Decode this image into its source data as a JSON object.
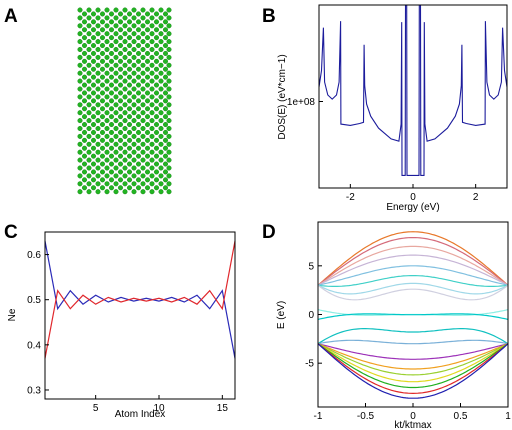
{
  "panels": {
    "A": {
      "letter": "A",
      "lattice_color": "#22b422"
    },
    "B": {
      "letter": "B"
    },
    "C": {
      "letter": "C"
    },
    "D": {
      "letter": "D"
    }
  },
  "chart_data": [
    {
      "panel": "B",
      "type": "line",
      "title": "",
      "xlabel": "Energy (eV)",
      "ylabel": "DOS(E) (eV*cm−1)",
      "xlim": [
        -3,
        3
      ],
      "log_y": true,
      "ylim": [
        3000000,
        5000000000
      ],
      "xticks": [
        {
          "v": -2,
          "label": "-2"
        },
        {
          "v": 0,
          "label": "0"
        },
        {
          "v": 2,
          "label": "2"
        }
      ],
      "yticks": [
        {
          "v": 100000000,
          "label": "1e+08"
        }
      ],
      "series": [
        {
          "color": "#1c1c9c",
          "points": [
            [
              -3.0,
              180000000.0
            ],
            [
              -2.92,
              350000000.0
            ],
            [
              -2.86,
              2000000000.0
            ],
            [
              -2.82,
              220000000.0
            ],
            [
              -2.72,
              130000000.0
            ],
            [
              -2.58,
              110000000.0
            ],
            [
              -2.44,
              130000000.0
            ],
            [
              -2.36,
              220000000.0
            ],
            [
              -2.31,
              2600000000.0
            ],
            [
              -2.3,
              40000000.0
            ],
            [
              -2.0,
              38000000.0
            ],
            [
              -1.7,
              41000000.0
            ],
            [
              -1.58,
              43000000.0
            ],
            [
              -1.56,
              1000000000.0
            ],
            [
              -1.54,
              190000000.0
            ],
            [
              -1.48,
              90000000.0
            ],
            [
              -1.35,
              55000000.0
            ],
            [
              -1.1,
              34000000.0
            ],
            [
              -0.7,
              22000000.0
            ],
            [
              -0.45,
              20000000.0
            ],
            [
              -0.38,
              40000000.0
            ],
            [
              -0.36,
              2500000000.0
            ],
            [
              -0.35,
              5000000.0
            ],
            [
              -0.25,
              5000000.0
            ],
            [
              -0.24,
              5000000000.0
            ],
            [
              -0.2,
              5000000000.0
            ],
            [
              -0.19,
              5000000.0
            ],
            [
              0.19,
              5000000.0
            ],
            [
              0.2,
              5000000000.0
            ],
            [
              0.24,
              5000000000.0
            ],
            [
              0.25,
              5000000.0
            ],
            [
              0.35,
              5000000.0
            ],
            [
              0.36,
              2500000000.0
            ],
            [
              0.38,
              40000000.0
            ],
            [
              0.45,
              20000000.0
            ],
            [
              0.7,
              22000000.0
            ],
            [
              1.1,
              34000000.0
            ],
            [
              1.35,
              55000000.0
            ],
            [
              1.48,
              90000000.0
            ],
            [
              1.54,
              190000000.0
            ],
            [
              1.56,
              1000000000.0
            ],
            [
              1.58,
              43000000.0
            ],
            [
              1.7,
              41000000.0
            ],
            [
              2.0,
              38000000.0
            ],
            [
              2.3,
              40000000.0
            ],
            [
              2.31,
              2600000000.0
            ],
            [
              2.36,
              220000000.0
            ],
            [
              2.44,
              130000000.0
            ],
            [
              2.58,
              110000000.0
            ],
            [
              2.72,
              130000000.0
            ],
            [
              2.82,
              220000000.0
            ],
            [
              2.86,
              2000000000.0
            ],
            [
              2.92,
              350000000.0
            ],
            [
              3.0,
              180000000.0
            ]
          ]
        }
      ]
    },
    {
      "panel": "C",
      "type": "line",
      "title": "",
      "xlabel": "Atom Index",
      "ylabel": "Ne",
      "xlim": [
        1,
        16
      ],
      "ylim": [
        0.28,
        0.65
      ],
      "xticks": [
        {
          "v": 5,
          "label": "5"
        },
        {
          "v": 10,
          "label": "10"
        },
        {
          "v": 15,
          "label": "15"
        }
      ],
      "yticks": [
        {
          "v": 0.3,
          "label": "0.3"
        },
        {
          "v": 0.4,
          "label": "0.4"
        },
        {
          "v": 0.5,
          "label": "0.5"
        },
        {
          "v": 0.6,
          "label": "0.6"
        }
      ],
      "x": [
        1,
        2,
        3,
        4,
        5,
        6,
        7,
        8,
        9,
        10,
        11,
        12,
        13,
        14,
        15,
        16
      ],
      "series": [
        {
          "color": "#2b2bb8",
          "values": [
            0.63,
            0.48,
            0.52,
            0.49,
            0.51,
            0.495,
            0.505,
            0.497,
            0.503,
            0.497,
            0.505,
            0.495,
            0.51,
            0.48,
            0.52,
            0.37
          ]
        },
        {
          "color": "#e0282d",
          "values": [
            0.37,
            0.52,
            0.48,
            0.51,
            0.49,
            0.505,
            0.495,
            0.503,
            0.497,
            0.503,
            0.495,
            0.505,
            0.49,
            0.52,
            0.48,
            0.63
          ]
        }
      ]
    },
    {
      "panel": "D",
      "type": "line",
      "title": "",
      "xlabel": "kt/ktmax",
      "ylabel": "E (eV)",
      "xlim": [
        -1,
        1
      ],
      "ylim": [
        -9.5,
        9.5
      ],
      "xticks": [
        {
          "v": -1,
          "label": "-1"
        },
        {
          "v": -0.5,
          "label": "-0.5"
        },
        {
          "v": 0,
          "label": "0"
        },
        {
          "v": 0.5,
          "label": "0.5"
        },
        {
          "v": 1,
          "label": "1"
        }
      ],
      "yticks": [
        {
          "v": -5,
          "label": "-5"
        },
        {
          "v": 0,
          "label": "0"
        },
        {
          "v": 5,
          "label": "5"
        }
      ],
      "bands": [
        {
          "color": "#e8782a",
          "edge": 3.0,
          "center": 8.5,
          "dip": 0
        },
        {
          "color": "#d46a7a",
          "edge": 3.0,
          "center": 7.9,
          "dip": 0
        },
        {
          "color": "#e8a8a0",
          "edge": 3.0,
          "center": 7.0,
          "dip": 0
        },
        {
          "color": "#c6b4d6",
          "edge": 3.0,
          "center": 6.1,
          "dip": 0
        },
        {
          "color": "#80c0e0",
          "edge": 3.0,
          "center": 5.0,
          "dip": 0.3
        },
        {
          "color": "#40d0c8",
          "edge": 3.0,
          "center": 4.0,
          "dip": 0.9
        },
        {
          "color": "#a0d8e8",
          "edge": 3.0,
          "center": 3.2,
          "dip": 1.7
        },
        {
          "color": "#d0d0e0",
          "edge": 3.0,
          "center": 2.6,
          "dip": 2.2
        },
        {
          "color": "#8eeee4",
          "edge": 0.5,
          "center": 0.0,
          "dip": 0.45
        },
        {
          "color": "#00c8c8",
          "edge": -0.5,
          "center": -0.02,
          "dip": -0.45
        },
        {
          "color": "#10c0c0",
          "edge": -3.0,
          "center": -1.8,
          "dip": -1.4
        },
        {
          "color": "#7ab0d8",
          "edge": -3.0,
          "center": -3.0,
          "dip": -0.6
        },
        {
          "color": "#9c30b8",
          "edge": -3.0,
          "center": -4.6,
          "dip": 0
        },
        {
          "color": "#f0a020",
          "edge": -3.0,
          "center": -5.6,
          "dip": 0
        },
        {
          "color": "#9ad030",
          "edge": -3.0,
          "center": -6.2,
          "dip": 0
        },
        {
          "color": "#e0d820",
          "edge": -3.0,
          "center": -6.9,
          "dip": 0
        },
        {
          "color": "#20b020",
          "edge": -3.0,
          "center": -7.5,
          "dip": 0
        },
        {
          "color": "#e02828",
          "edge": -3.0,
          "center": -8.1,
          "dip": 0
        },
        {
          "color": "#2020b0",
          "edge": -3.0,
          "center": -8.6,
          "dip": 0
        }
      ]
    }
  ]
}
